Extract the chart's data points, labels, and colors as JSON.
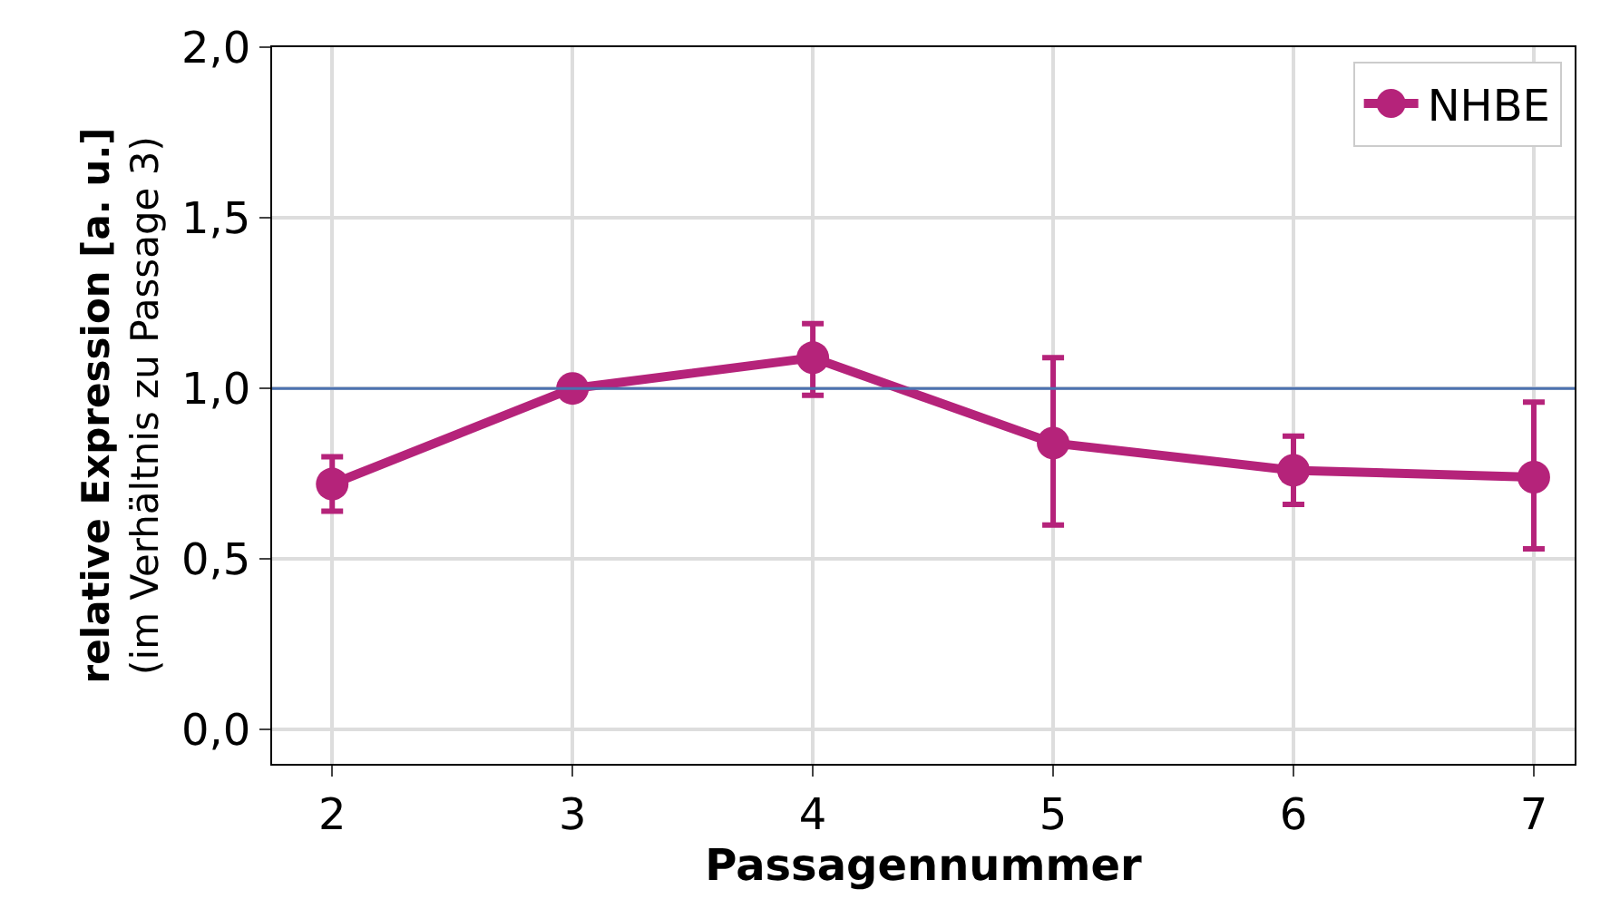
{
  "chart_data": {
    "type": "line",
    "xlabel": "Passagennummer",
    "ylabel": "relative Expression [a. u.]\n(im Verhältnis zu Passage 3)",
    "x": [
      2,
      3,
      4,
      5,
      6,
      7
    ],
    "series": [
      {
        "name": "NHBE",
        "color": "#b5237a",
        "values": [
          0.72,
          1.0,
          1.09,
          0.84,
          0.76,
          0.74
        ],
        "errors": [
          [
            0.64,
            0.8
          ],
          null,
          [
            0.98,
            1.19
          ],
          [
            0.6,
            1.09
          ],
          [
            0.66,
            0.86
          ],
          [
            0.53,
            0.96
          ]
        ]
      }
    ],
    "xlim": [
      1.75,
      7.17
    ],
    "ylim": [
      -0.1,
      2.0
    ],
    "xticks": [
      2,
      3,
      4,
      5,
      6,
      7
    ],
    "yticks": [
      {
        "value": 0,
        "label": "0,0"
      },
      {
        "value": 0.5,
        "label": "0,5"
      },
      {
        "value": 1,
        "label": "1,0"
      },
      {
        "value": 1.5,
        "label": "1,5"
      },
      {
        "value": 2,
        "label": "2,0"
      }
    ],
    "ref_lines": [
      {
        "axis": "y",
        "value": 1,
        "color": "#4c72b0"
      }
    ],
    "grid": true,
    "legend": "top right",
    "marker": "circle",
    "line_style": "solid"
  }
}
